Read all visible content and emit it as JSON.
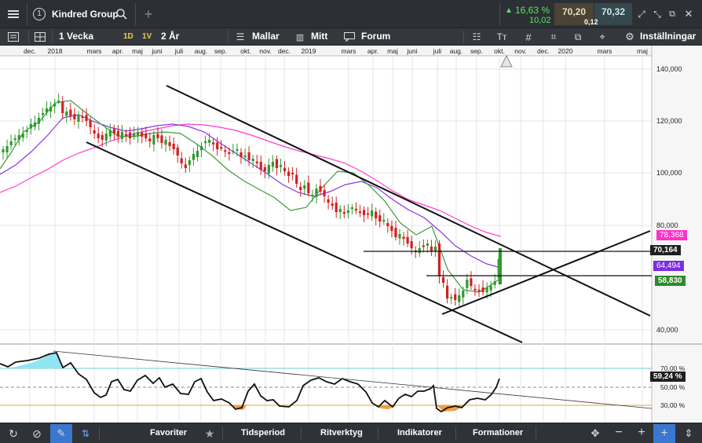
{
  "instrument": {
    "index": "1",
    "name": "Kindred Group",
    "change_pct": "16,63 %",
    "change_abs": "10,02",
    "bid": "70,20",
    "ask": "70,32",
    "spread": "0,12"
  },
  "toolbar": {
    "interval": "1 Vecka",
    "btn_1d": "1D",
    "btn_1v": "1V",
    "period": "2 År",
    "templates": "Mallar",
    "mitt": "Mitt",
    "forum": "Forum",
    "settings": "Inställningar"
  },
  "timeline": {
    "labels": [
      "dec.",
      "2018",
      "mars",
      "apr.",
      "maj",
      "juni",
      "juli",
      "aug.",
      "sep.",
      "okt.",
      "nov.",
      "dec.",
      "2019",
      "mars",
      "apr.",
      "maj",
      "juni",
      "juli",
      "aug.",
      "sep.",
      "okt.",
      "nov.",
      "dec.",
      "2020",
      "mars",
      "maj"
    ]
  },
  "price_axis": {
    "ticks": [
      "140,000",
      "120,000",
      "100,000",
      "80,000",
      "40,000"
    ],
    "tags": {
      "ma_pink": "78,368",
      "last": "70,164",
      "ma_purple": "64,494",
      "ma_green": "58,830"
    }
  },
  "osc_axis": {
    "ticks": [
      "70,00 %",
      "50,00 %",
      "30,00 %"
    ],
    "value": "59,24 %"
  },
  "bottom": {
    "favorites": "Favoriter",
    "timeperiod": "Tidsperiod",
    "drawing_tools": "Ritverktyg",
    "indicators": "Indikatorer",
    "formations": "Formationer"
  },
  "colors": {
    "green": "#2e9b2e",
    "red": "#d22020",
    "pink": "#ff2fc8",
    "purple": "#7a2de0",
    "ma_green": "#3a9a3a",
    "last_bg": "#222222",
    "osc_fill_blue": "#8fe6f2",
    "osc_fill_orange": "#f0a040",
    "up_text": "#5fe05f"
  },
  "chart_data": {
    "type": "candlestick",
    "ylim": [
      35,
      145
    ],
    "candles": []
  }
}
